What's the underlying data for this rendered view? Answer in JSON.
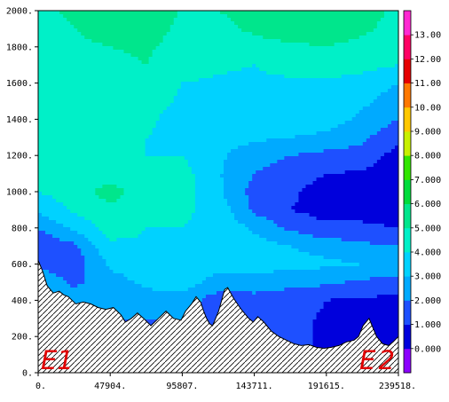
{
  "chart_data": {
    "type": "heatmap",
    "title": "",
    "xlabel": "",
    "ylabel": "",
    "x_ticks": [
      "0.",
      "47904.",
      "95807.",
      "143711.",
      "191615.",
      "239518."
    ],
    "x_tick_values": [
      0,
      47904,
      95807,
      143711,
      191615,
      239518
    ],
    "y_ticks": [
      "0.",
      "200.",
      "400.",
      "600.",
      "800.",
      "1000.",
      "1200.",
      "1400.",
      "1600.",
      "1800.",
      "2000."
    ],
    "y_tick_values": [
      0,
      200,
      400,
      600,
      800,
      1000,
      1200,
      1400,
      1600,
      1800,
      2000
    ],
    "xlim": [
      0,
      239518
    ],
    "ylim": [
      0,
      2000
    ],
    "colorbar": {
      "labels": [
        "0.000",
        "1.000",
        "2.000",
        "3.000",
        "4.000",
        "5.000",
        "6.000",
        "7.000",
        "8.000",
        "9.000",
        "10.00",
        "11.00",
        "12.00",
        "13.00"
      ],
      "levels": [
        0,
        1,
        2,
        3,
        4,
        5,
        6,
        7,
        8,
        9,
        10,
        11,
        12,
        13
      ],
      "colors": [
        "#8c00ff",
        "#0000dc",
        "#1e50ff",
        "#00aaff",
        "#00d2ff",
        "#00f0c8",
        "#00e68c",
        "#00dc3c",
        "#32e600",
        "#c8f000",
        "#ffc800",
        "#ff7800",
        "#e60000",
        "#ff0064",
        "#ff28d2"
      ],
      "range": [
        -1,
        14
      ]
    },
    "terrain_hatched": true,
    "annotations": [
      {
        "text": "E1",
        "position": "bottom-left"
      },
      {
        "text": "E2",
        "position": "bottom-right"
      }
    ],
    "terrain": {
      "x": [
        0,
        3000,
        6000,
        10000,
        14000,
        17000,
        20000,
        25000,
        30000,
        35000,
        40000,
        45000,
        50000,
        55000,
        58000,
        62000,
        66000,
        70000,
        75000,
        80000,
        85000,
        90000,
        95000,
        98000,
        102000,
        105000,
        108000,
        110000,
        112000,
        114000,
        116000,
        118000,
        120000,
        122000,
        124000,
        126000,
        130000,
        135000,
        140000,
        143000,
        146000,
        150000,
        155000,
        160000,
        165000,
        170000,
        175000,
        180000,
        185000,
        190000,
        195000,
        200000,
        205000,
        210000,
        213000,
        216000,
        220000,
        222000,
        225000,
        229000,
        233000,
        236000,
        239518
      ],
      "y": [
        620,
        560,
        480,
        440,
        450,
        430,
        420,
        380,
        390,
        380,
        360,
        350,
        360,
        320,
        280,
        300,
        330,
        300,
        260,
        300,
        340,
        300,
        290,
        340,
        380,
        420,
        390,
        340,
        300,
        270,
        260,
        300,
        340,
        400,
        460,
        470,
        410,
        350,
        300,
        280,
        310,
        280,
        230,
        200,
        180,
        160,
        150,
        155,
        140,
        135,
        140,
        150,
        170,
        180,
        200,
        260,
        300,
        260,
        200,
        160,
        150,
        170,
        200
      ]
    },
    "field": {
      "x": [
        0,
        23952,
        47904,
        71856,
        95807,
        119759,
        143711,
        167663,
        191615,
        215567,
        239518
      ],
      "y": [
        0,
        100,
        200,
        300,
        400,
        500,
        600,
        700,
        800,
        900,
        1000,
        1100,
        1200,
        1300,
        1400,
        1500,
        1600,
        1700,
        1800,
        1900,
        2000
      ],
      "z": [
        [
          1.0,
          1.0,
          1.0,
          1.0,
          1.0,
          1.0,
          1.0,
          1.0,
          1.0,
          1.0,
          1.0
        ],
        [
          1.0,
          1.0,
          1.0,
          1.0,
          1.0,
          1.0,
          1.0,
          1.0,
          1.0,
          0.8,
          0.8
        ],
        [
          1.5,
          1.5,
          1.5,
          1.5,
          1.5,
          1.5,
          1.5,
          1.2,
          0.9,
          0.7,
          0.7
        ],
        [
          2.0,
          2.0,
          2.0,
          2.0,
          2.0,
          2.0,
          1.6,
          1.2,
          0.9,
          0.7,
          0.6
        ],
        [
          2.6,
          2.5,
          2.4,
          2.6,
          2.6,
          1.4,
          1.6,
          1.3,
          1.0,
          0.8,
          0.8
        ],
        [
          2.8,
          1.8,
          2.6,
          3.2,
          3.5,
          2.6,
          2.6,
          2.4,
          2.2,
          1.8,
          1.6
        ],
        [
          1.8,
          1.4,
          3.2,
          3.5,
          3.6,
          3.4,
          3.4,
          3.3,
          3.2,
          3.0,
          2.8
        ],
        [
          1.2,
          1.8,
          3.8,
          3.9,
          3.9,
          3.8,
          3.5,
          3.0,
          2.6,
          2.2,
          2.0
        ],
        [
          2.0,
          3.2,
          4.4,
          4.0,
          4.0,
          3.8,
          2.8,
          1.8,
          1.2,
          1.2,
          1.0
        ],
        [
          3.2,
          4.2,
          4.8,
          4.2,
          4.2,
          3.6,
          1.8,
          1.0,
          0.6,
          0.6,
          0.5
        ],
        [
          4.0,
          4.5,
          5.4,
          4.4,
          4.4,
          3.2,
          1.6,
          1.2,
          0.5,
          0.4,
          0.3
        ],
        [
          4.3,
          4.3,
          4.6,
          4.3,
          4.4,
          3.1,
          2.0,
          1.6,
          1.0,
          0.9,
          0.4
        ],
        [
          4.8,
          4.3,
          4.3,
          4.0,
          4.0,
          3.2,
          2.4,
          2.0,
          1.7,
          1.6,
          0.6
        ],
        [
          5.0,
          4.2,
          4.0,
          4.0,
          3.6,
          3.4,
          3.2,
          3.0,
          2.8,
          2.2,
          1.2
        ],
        [
          5.0,
          4.2,
          4.0,
          4.3,
          3.4,
          3.6,
          3.7,
          3.7,
          3.4,
          2.8,
          2.0
        ],
        [
          4.8,
          4.2,
          4.2,
          4.5,
          3.8,
          3.8,
          3.8,
          3.8,
          3.7,
          3.2,
          2.5
        ],
        [
          4.6,
          4.3,
          4.3,
          4.8,
          4.0,
          3.9,
          3.9,
          3.9,
          3.9,
          3.6,
          3.0
        ],
        [
          4.5,
          4.4,
          4.6,
          5.0,
          4.3,
          4.1,
          4.0,
          4.2,
          4.4,
          4.3,
          4.0
        ],
        [
          4.6,
          4.8,
          5.0,
          5.2,
          4.5,
          4.3,
          4.6,
          4.8,
          5.0,
          4.7,
          4.4
        ],
        [
          4.6,
          5.0,
          5.4,
          5.6,
          4.7,
          4.7,
          5.2,
          5.6,
          5.6,
          5.2,
          4.6
        ],
        [
          4.7,
          5.2,
          5.6,
          6.0,
          4.9,
          5.0,
          5.4,
          5.8,
          5.9,
          5.4,
          4.8
        ]
      ]
    }
  }
}
